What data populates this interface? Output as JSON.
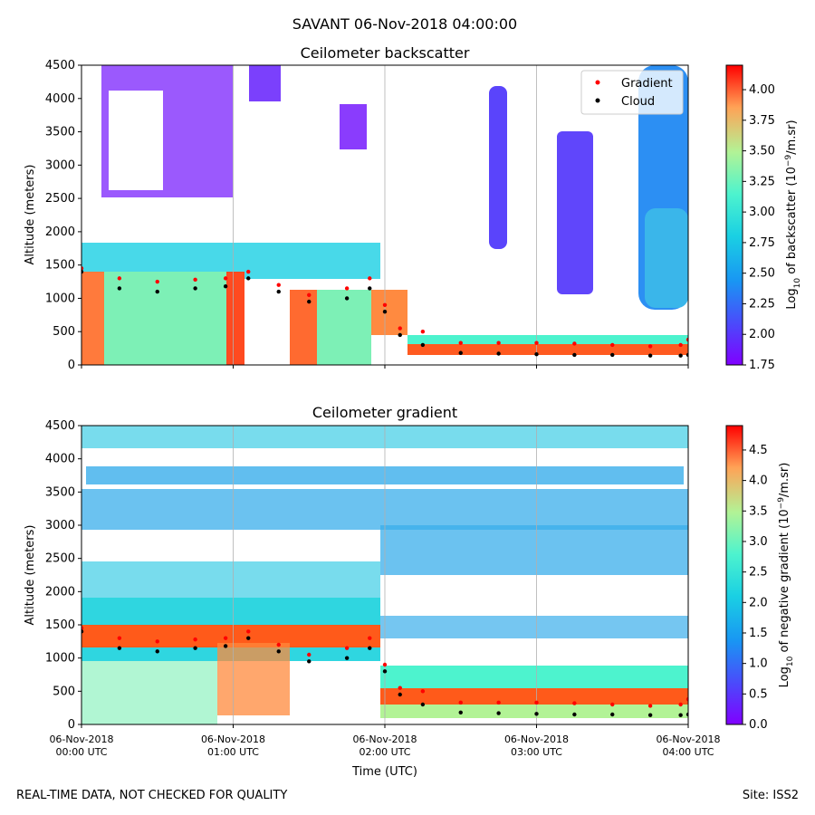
{
  "suptitle": "SAVANT 06-Nov-2018 04:00:00",
  "footer": {
    "left": "REAL-TIME DATA, NOT CHECKED FOR QUALITY",
    "right": "Site: ISS2"
  },
  "colors": {
    "grid": "#b0b0b0",
    "gradient_marker": "#ff0000",
    "cloud_marker": "#000000",
    "colormap": "rainbow"
  },
  "chart_data": [
    {
      "type": "heatmap",
      "title": "Ceilometer backscatter",
      "ylabel": "Altitude (meters)",
      "xlabel": "",
      "ylim": [
        0,
        4500
      ],
      "yticks": [
        "0",
        "500",
        "1000",
        "1500",
        "2000",
        "2500",
        "3000",
        "3500",
        "4000",
        "4500"
      ],
      "xticks": [
        {
          "date": "06-Nov-2018",
          "time": "00:00 UTC",
          "hours": 0
        },
        {
          "date": "06-Nov-2018",
          "time": "01:00 UTC",
          "hours": 1
        },
        {
          "date": "06-Nov-2018",
          "time": "02:00 UTC",
          "hours": 2
        },
        {
          "date": "06-Nov-2018",
          "time": "03:00 UTC",
          "hours": 3
        },
        {
          "date": "06-Nov-2018",
          "time": "04:00 UTC",
          "hours": 4
        }
      ],
      "xtick_labels_shown": false,
      "grid": "vertical lines",
      "legend": {
        "placement": "top-right",
        "entries": [
          "Gradient",
          "Cloud"
        ]
      },
      "colorbar": {
        "label_prefix": "Log",
        "label_sub": "10",
        "label_mid": " of backscatter (10",
        "label_sup": "−9",
        "label_suffix": "/m.sr)",
        "range": [
          1.75,
          4.2
        ],
        "ticks": [
          "1.75",
          "2.00",
          "2.25",
          "2.50",
          "2.75",
          "3.00",
          "3.25",
          "3.50",
          "3.75",
          "4.00"
        ]
      },
      "series": [
        {
          "name": "Gradient",
          "marker": "red",
          "x": [
            0.0,
            0.25,
            0.5,
            0.75,
            0.95,
            1.1,
            1.3,
            1.5,
            1.75,
            1.9,
            2.0,
            2.1,
            2.25,
            2.5,
            2.75,
            3.0,
            3.25,
            3.5,
            3.75,
            3.95,
            4.0
          ],
          "y": [
            1450,
            1300,
            1250,
            1280,
            1300,
            1400,
            1200,
            1050,
            1150,
            1300,
            900,
            550,
            500,
            330,
            330,
            330,
            320,
            300,
            280,
            300,
            380
          ]
        },
        {
          "name": "Cloud",
          "marker": "black",
          "x": [
            0.0,
            0.25,
            0.5,
            0.75,
            0.95,
            1.1,
            1.3,
            1.5,
            1.75,
            1.9,
            2.0,
            2.1,
            2.25,
            2.5,
            2.75,
            3.0,
            3.25,
            3.5,
            3.75,
            3.95,
            4.0
          ],
          "y": [
            1400,
            1150,
            1100,
            1150,
            1180,
            1300,
            1100,
            950,
            1000,
            1150,
            800,
            450,
            300,
            180,
            170,
            160,
            150,
            150,
            140,
            140,
            150
          ]
        }
      ]
    },
    {
      "type": "heatmap",
      "title": "Ceilometer gradient",
      "ylabel": "Altitude (meters)",
      "xlabel": "Time (UTC)",
      "ylim": [
        0,
        4500
      ],
      "yticks": [
        "0",
        "500",
        "1000",
        "1500",
        "2000",
        "2500",
        "3000",
        "3500",
        "4000",
        "4500"
      ],
      "xticks": [
        {
          "date": "06-Nov-2018",
          "time": "00:00 UTC",
          "hours": 0
        },
        {
          "date": "06-Nov-2018",
          "time": "01:00 UTC",
          "hours": 1
        },
        {
          "date": "06-Nov-2018",
          "time": "02:00 UTC",
          "hours": 2
        },
        {
          "date": "06-Nov-2018",
          "time": "03:00 UTC",
          "hours": 3
        },
        {
          "date": "06-Nov-2018",
          "time": "04:00 UTC",
          "hours": 4
        }
      ],
      "xtick_labels_shown": true,
      "grid": "vertical lines",
      "colorbar": {
        "label_prefix": "Log",
        "label_sub": "10",
        "label_mid": " of negative gradient (10",
        "label_sup": "−9",
        "label_suffix": "/m.sr)",
        "range": [
          0.0,
          4.9
        ],
        "ticks": [
          "0.0",
          "0.5",
          "1.0",
          "1.5",
          "2.0",
          "2.5",
          "3.0",
          "3.5",
          "4.0",
          "4.5"
        ]
      },
      "series": [
        {
          "name": "Gradient",
          "marker": "red",
          "x": [
            0.0,
            0.25,
            0.5,
            0.75,
            0.95,
            1.1,
            1.3,
            1.5,
            1.75,
            1.9,
            2.0,
            2.1,
            2.25,
            2.5,
            2.75,
            3.0,
            3.25,
            3.5,
            3.75,
            3.95,
            4.0
          ],
          "y": [
            1450,
            1300,
            1250,
            1280,
            1300,
            1400,
            1200,
            1050,
            1150,
            1300,
            900,
            550,
            500,
            330,
            330,
            330,
            320,
            300,
            280,
            300,
            380
          ]
        },
        {
          "name": "Cloud",
          "marker": "black",
          "x": [
            0.0,
            0.25,
            0.5,
            0.75,
            0.95,
            1.1,
            1.3,
            1.5,
            1.75,
            1.9,
            2.0,
            2.1,
            2.25,
            2.5,
            2.75,
            3.0,
            3.25,
            3.5,
            3.75,
            3.95,
            4.0
          ],
          "y": [
            1400,
            1150,
            1100,
            1150,
            1180,
            1300,
            1100,
            950,
            1000,
            1150,
            800,
            450,
            300,
            180,
            170,
            160,
            150,
            150,
            140,
            140,
            150
          ]
        }
      ]
    }
  ]
}
